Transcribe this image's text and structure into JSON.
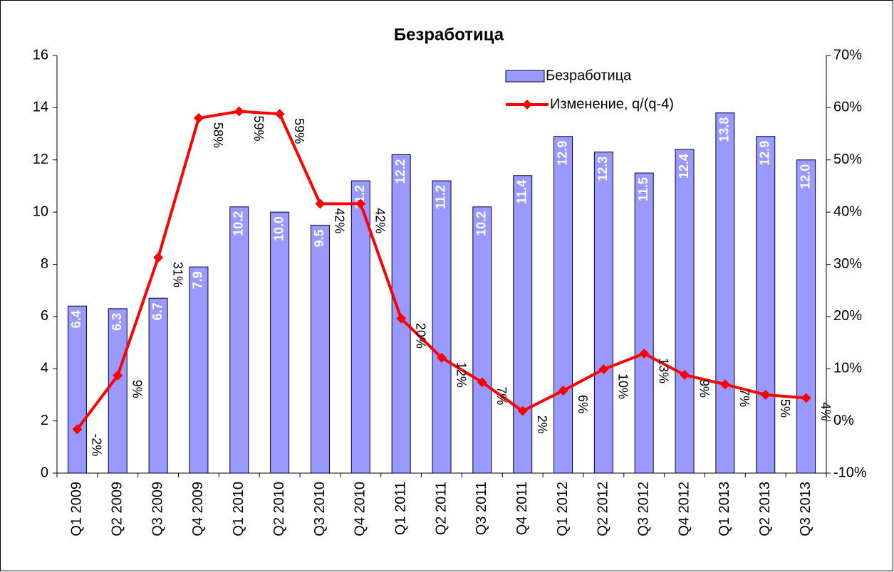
{
  "chart_data": {
    "type": "bar-line",
    "title": "Безработица",
    "categories": [
      "Q1 2009",
      "Q2 2009",
      "Q3 2009",
      "Q4 2009",
      "Q1 2010",
      "Q2 2010",
      "Q3 2010",
      "Q4 2010",
      "Q1 2011",
      "Q2 2011",
      "Q3 2011",
      "Q4 2011",
      "Q1 2012",
      "Q2 2012",
      "Q3 2012",
      "Q4 2012",
      "Q1 2013",
      "Q2 2013",
      "Q3 2013"
    ],
    "series": [
      {
        "name": "Безработица",
        "type": "bar",
        "color": "#9999ff",
        "values": [
          6.4,
          6.3,
          6.7,
          7.9,
          10.2,
          10.0,
          9.5,
          11.2,
          12.2,
          11.2,
          10.2,
          11.4,
          12.9,
          12.3,
          11.5,
          12.4,
          13.8,
          12.9,
          12.0
        ],
        "value_labels": [
          "6.4",
          "6.3",
          "6.7",
          "7.9",
          "10.2",
          "10.0",
          "9.5",
          "11.2",
          "12.2",
          "11.2",
          "10.2",
          "11.4",
          "12.9",
          "12.3",
          "11.5",
          "12.4",
          "13.8",
          "12.9",
          "12.0"
        ]
      },
      {
        "name": "Изменение, q/(q-4)",
        "type": "line",
        "axis": "y2",
        "color": "#ff0000",
        "values": [
          -1.6,
          8.7,
          31.3,
          58.0,
          59.3,
          58.8,
          41.6,
          41.6,
          19.6,
          12.1,
          7.4,
          1.9,
          5.8,
          9.9,
          12.9,
          8.8,
          7.0,
          5.0,
          4.4
        ],
        "value_labels": [
          "-2%",
          "9%",
          "31%",
          "58%",
          "59%",
          "59%",
          "42%",
          "42%",
          "20%",
          "12%",
          "7%",
          "2%",
          "6%",
          "10%",
          "13%",
          "9%",
          "7%",
          "5%",
          "4%"
        ]
      }
    ],
    "ylim": [
      0,
      16
    ],
    "yticks": [
      0,
      2,
      4,
      6,
      8,
      10,
      12,
      14,
      16
    ],
    "y2lim": [
      -10,
      70
    ],
    "y2ticks": [
      {
        "value": -10,
        "label": "-10%"
      },
      {
        "value": 0,
        "label": "0%"
      },
      {
        "value": 10,
        "label": "10%"
      },
      {
        "value": 20,
        "label": "20%"
      },
      {
        "value": 30,
        "label": "30%"
      },
      {
        "value": 40,
        "label": "40%"
      },
      {
        "value": 50,
        "label": "50%"
      },
      {
        "value": 60,
        "label": "60%"
      },
      {
        "value": 70,
        "label": "70%"
      }
    ],
    "grid": false,
    "legend": "upper right"
  }
}
